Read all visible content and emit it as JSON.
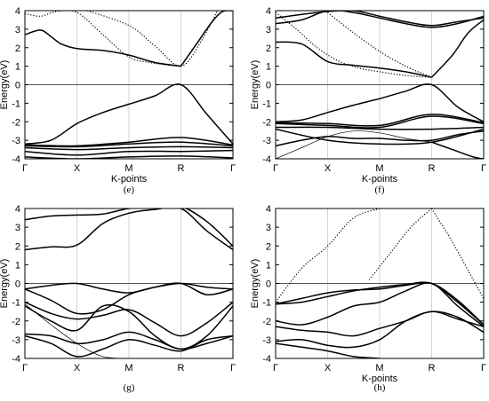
{
  "figure": {
    "panel_labels": [
      "(e)",
      "(f)",
      "(g)",
      "(h)"
    ]
  },
  "chart_data": [
    {
      "type": "line",
      "panel_label": "(e)",
      "xlabel": "K-points",
      "ylabel": "Energy(eV)",
      "x_ticks": [
        "Γ",
        "X",
        "M",
        "R",
        "Γ"
      ],
      "xlim": [
        0,
        4
      ],
      "ylim": [
        -4,
        4
      ],
      "y_ticks": [
        -4,
        -3,
        -2,
        -1,
        0,
        1,
        2,
        3,
        4
      ],
      "fermi_level": 0,
      "series": [
        {
          "x": [
            0,
            0.3,
            0.5,
            0.7,
            1,
            1.5,
            2,
            2.5,
            3
          ],
          "y": [
            2.7,
            2.95,
            2.6,
            2.2,
            1.95,
            1.85,
            1.6,
            1.2,
            1.0
          ],
          "style": "solid"
        },
        {
          "x": [
            3,
            3.3,
            3.6,
            3.8,
            4
          ],
          "y": [
            1.0,
            2.2,
            3.4,
            3.95,
            4.0
          ],
          "style": "solid"
        },
        {
          "x": [
            0,
            0.3,
            0.6,
            1,
            1.5,
            2,
            2.4,
            2.8,
            3
          ],
          "y": [
            3.85,
            3.7,
            3.95,
            3.9,
            2.7,
            1.5,
            1.2,
            1.05,
            1.0
          ],
          "style": "dotted"
        },
        {
          "x": [
            1.2,
            2,
            2.5,
            3,
            3.4,
            3.7
          ],
          "y": [
            4.0,
            3.2,
            2.1,
            1.0,
            2.4,
            4.0
          ],
          "style": "dotted"
        },
        {
          "x": [
            0,
            0.5,
            1,
            1.5,
            2,
            2.5,
            3,
            3.5,
            4
          ],
          "y": [
            -3.2,
            -3.0,
            -2.1,
            -1.5,
            -1.05,
            -0.6,
            0.0,
            -1.6,
            -3.2
          ],
          "style": "solid"
        },
        {
          "x": [
            0,
            1,
            2,
            3,
            4
          ],
          "y": [
            -3.25,
            -3.3,
            -3.1,
            -2.85,
            -3.25
          ],
          "style": "solid"
        },
        {
          "x": [
            0,
            1,
            2,
            3,
            4
          ],
          "y": [
            -3.3,
            -3.35,
            -3.2,
            -3.1,
            -3.3
          ],
          "style": "solid"
        },
        {
          "x": [
            0,
            1,
            2,
            3,
            4
          ],
          "y": [
            -3.4,
            -3.5,
            -3.4,
            -3.35,
            -3.4
          ],
          "style": "solid"
        },
        {
          "x": [
            0,
            1,
            2,
            3,
            4
          ],
          "y": [
            -3.6,
            -3.8,
            -3.6,
            -3.6,
            -3.55
          ],
          "style": "solid"
        },
        {
          "x": [
            0,
            1,
            2,
            3,
            4
          ],
          "y": [
            -3.9,
            -4.0,
            -3.9,
            -3.85,
            -3.95
          ],
          "style": "solid"
        }
      ]
    },
    {
      "type": "line",
      "panel_label": "(f)",
      "xlabel": "K-points",
      "ylabel": "Energy(eV)",
      "x_ticks": [
        "Γ",
        "X",
        "M",
        "R",
        "Γ"
      ],
      "xlim": [
        0,
        4
      ],
      "ylim": [
        -4,
        4
      ],
      "y_ticks": [
        -4,
        -3,
        -2,
        -1,
        0,
        1,
        2,
        3,
        4
      ],
      "fermi_level": 0,
      "series": [
        {
          "x": [
            0,
            0.5,
            1,
            1.5,
            2,
            2.5,
            3
          ],
          "y": [
            2.3,
            2.2,
            1.25,
            1.05,
            0.9,
            0.7,
            0.4
          ],
          "style": "solid"
        },
        {
          "x": [
            3,
            3.4,
            3.7,
            4
          ],
          "y": [
            0.4,
            1.6,
            2.8,
            3.5
          ],
          "style": "solid"
        },
        {
          "x": [
            0,
            0.5,
            1,
            1.5,
            2,
            2.5,
            3,
            3.5,
            4
          ],
          "y": [
            3.3,
            3.5,
            4.0,
            3.9,
            3.6,
            3.3,
            3.1,
            3.3,
            3.7
          ],
          "style": "solid"
        },
        {
          "x": [
            0,
            0.5,
            1,
            1.5,
            2,
            2.5,
            3,
            3.5,
            4
          ],
          "y": [
            3.6,
            3.8,
            3.95,
            4.0,
            3.7,
            3.4,
            3.2,
            3.4,
            3.6
          ],
          "style": "solid"
        },
        {
          "x": [
            0,
            0.4,
            0.8,
            1.2,
            1.6,
            2,
            2.5,
            3
          ],
          "y": [
            3.9,
            3.0,
            2.0,
            1.3,
            0.9,
            0.7,
            0.5,
            0.4
          ],
          "style": "dotted"
        },
        {
          "x": [
            1.0,
            1.5,
            2,
            2.5,
            3
          ],
          "y": [
            3.9,
            2.8,
            1.8,
            1.0,
            0.4
          ],
          "style": "dotted"
        },
        {
          "x": [
            0,
            0.5,
            1,
            1.5,
            2,
            2.5,
            3,
            3.5,
            4
          ],
          "y": [
            -2.0,
            -1.9,
            -1.5,
            -1.1,
            -0.75,
            -0.35,
            0.0,
            -1.2,
            -2.0
          ],
          "style": "solid"
        },
        {
          "x": [
            0,
            1,
            2,
            3,
            4
          ],
          "y": [
            -2.05,
            -2.1,
            -2.2,
            -1.6,
            -2.05
          ],
          "style": "solid"
        },
        {
          "x": [
            0,
            1,
            2,
            3,
            4
          ],
          "y": [
            -2.1,
            -2.2,
            -2.3,
            -1.7,
            -2.1
          ],
          "style": "solid"
        },
        {
          "x": [
            0,
            1,
            2,
            3,
            4
          ],
          "y": [
            -2.3,
            -2.3,
            -2.4,
            -2.4,
            -2.3
          ],
          "style": "solid"
        },
        {
          "x": [
            0,
            0.5,
            1,
            1.5,
            2,
            2.5,
            3,
            3.5,
            4
          ],
          "y": [
            -3.3,
            -3.0,
            -2.8,
            -2.9,
            -2.9,
            -3.0,
            -3.0,
            -2.7,
            -2.5
          ],
          "style": "solid"
        },
        {
          "x": [
            0,
            1,
            2,
            3,
            4
          ],
          "y": [
            -2.4,
            -3.0,
            -3.2,
            -3.1,
            -2.4
          ],
          "style": "solid"
        },
        {
          "x": [
            0,
            0.5,
            1,
            1.5,
            2,
            2.5,
            3
          ],
          "y": [
            -4.0,
            -3.4,
            -2.8,
            -2.5,
            -2.6,
            -2.9,
            -3.1
          ],
          "style": "thin"
        },
        {
          "x": [
            3,
            3.4,
            3.8,
            4
          ],
          "y": [
            -3.1,
            -3.5,
            -3.9,
            -4.0
          ],
          "style": "solid"
        }
      ]
    },
    {
      "type": "line",
      "panel_label": "(g)",
      "xlabel": "",
      "ylabel": "Energy(eV)",
      "x_ticks": [
        "Γ",
        "X",
        "M",
        "R",
        "Γ"
      ],
      "xlim": [
        0,
        4
      ],
      "ylim": [
        -4,
        4
      ],
      "y_ticks": [
        -4,
        -3,
        -2,
        -1,
        0,
        1,
        2,
        3,
        4
      ],
      "fermi_level": 0,
      "series": [
        {
          "x": [
            0,
            0.5,
            1,
            1.5,
            2,
            2.5,
            3,
            3.5,
            4
          ],
          "y": [
            1.8,
            1.95,
            2.05,
            3.2,
            3.75,
            3.95,
            4.0,
            2.8,
            1.8
          ],
          "style": "solid"
        },
        {
          "x": [
            0,
            0.5,
            1,
            1.5,
            2,
            2.5,
            3,
            3.5,
            4
          ],
          "y": [
            3.4,
            3.6,
            3.65,
            3.7,
            4.0,
            4.05,
            4.1,
            3.3,
            2.0
          ],
          "style": "solid"
        },
        {
          "x": [
            0,
            0.5,
            1,
            1.5,
            2,
            2.5,
            3,
            3.5,
            4
          ],
          "y": [
            -0.3,
            -0.1,
            0.0,
            -0.3,
            -0.5,
            -0.2,
            0.0,
            -0.2,
            -0.3
          ],
          "style": "solid"
        },
        {
          "x": [
            0,
            0.5,
            1,
            1.5,
            2,
            2.5,
            3,
            3.5,
            4
          ],
          "y": [
            -0.3,
            -0.9,
            -1.6,
            -1.4,
            -0.6,
            -0.2,
            0.0,
            -0.6,
            -0.3
          ],
          "style": "solid"
        },
        {
          "x": [
            0,
            0.5,
            1,
            1.5,
            2,
            2.5,
            3,
            3.5,
            4
          ],
          "y": [
            -1.0,
            -1.6,
            -1.9,
            -1.7,
            -1.4,
            -2.1,
            -2.8,
            -2.1,
            -1.0
          ],
          "style": "solid"
        },
        {
          "x": [
            0,
            0.5,
            1,
            1.5,
            2,
            2.5,
            3,
            3.5,
            4
          ],
          "y": [
            -1.2,
            -2.0,
            -2.5,
            -1.2,
            -1.5,
            -2.8,
            -3.5,
            -2.8,
            -1.2
          ],
          "style": "solid"
        },
        {
          "x": [
            0,
            0.5,
            1,
            1.5,
            2,
            2.5,
            3,
            3.5,
            4
          ],
          "y": [
            -2.7,
            -2.8,
            -3.2,
            -3.0,
            -2.6,
            -3.0,
            -3.5,
            -3.2,
            -2.8
          ],
          "style": "solid"
        },
        {
          "x": [
            0,
            0.5,
            1,
            1.5,
            2,
            2.5,
            3,
            3.5,
            4
          ],
          "y": [
            -2.8,
            -3.2,
            -3.9,
            -3.5,
            -3.0,
            -3.3,
            -3.6,
            -3.0,
            -2.8
          ],
          "style": "solid"
        },
        {
          "x": [
            0,
            0.5,
            1,
            1.5,
            2
          ],
          "y": [
            -1.1,
            -2.2,
            -3.2,
            -3.9,
            -4.0
          ],
          "style": "thin"
        }
      ]
    },
    {
      "type": "line",
      "panel_label": "(h)",
      "xlabel": "K-points",
      "ylabel": "Energy(eV)",
      "x_ticks": [
        "Γ",
        "X",
        "M",
        "R",
        "Γ"
      ],
      "xlim": [
        0,
        4
      ],
      "ylim": [
        -4,
        4
      ],
      "y_ticks": [
        -4,
        -3,
        -2,
        -1,
        0,
        1,
        2,
        3,
        4
      ],
      "fermi_level": 0,
      "series": [
        {
          "x": [
            0,
            0.5,
            1,
            1.5,
            2
          ],
          "y": [
            -1.0,
            0.8,
            2.0,
            3.5,
            4.0
          ],
          "style": "dotted"
        },
        {
          "x": [
            1.8,
            2.2,
            2.6,
            3.0
          ],
          "y": [
            0.2,
            1.6,
            3.0,
            4.0
          ],
          "style": "dotted"
        },
        {
          "x": [
            3.0,
            3.4,
            3.8,
            4.0
          ],
          "y": [
            4.0,
            2.2,
            0.2,
            -0.8
          ],
          "style": "dotted"
        },
        {
          "x": [
            0,
            0.5,
            1,
            1.5,
            2,
            2.5,
            3,
            3.5,
            4
          ],
          "y": [
            -1.1,
            -1.0,
            -0.7,
            -0.4,
            -0.2,
            -0.05,
            0.0,
            -1.0,
            -2.2
          ],
          "style": "solid"
        },
        {
          "x": [
            0,
            0.5,
            1,
            1.5,
            2,
            2.5,
            3,
            3.5,
            4
          ],
          "y": [
            -1.1,
            -0.8,
            -0.5,
            -0.35,
            -0.3,
            -0.1,
            0.0,
            -0.9,
            -2.2
          ],
          "style": "solid"
        },
        {
          "x": [
            0,
            0.5,
            1,
            1.5,
            2,
            2.5,
            3,
            3.5,
            4
          ],
          "y": [
            -2.0,
            -2.2,
            -1.8,
            -1.2,
            -1.0,
            -0.4,
            0.0,
            -1.2,
            -2.3
          ],
          "style": "solid"
        },
        {
          "x": [
            0,
            0.5,
            1,
            1.5,
            2,
            2.5,
            3,
            3.5,
            4
          ],
          "y": [
            -2.3,
            -2.5,
            -2.6,
            -2.8,
            -2.4,
            -2.0,
            -1.5,
            -1.9,
            -2.3
          ],
          "style": "solid"
        },
        {
          "x": [
            0,
            0.5,
            1,
            1.5,
            2,
            2.5,
            3,
            3.5,
            4
          ],
          "y": [
            -3.1,
            -3.0,
            -3.3,
            -3.4,
            -3.0,
            -2.0,
            -1.5,
            -1.8,
            -2.6
          ],
          "style": "solid"
        },
        {
          "x": [
            0,
            0.5,
            1,
            1.5,
            2
          ],
          "y": [
            -3.2,
            -3.4,
            -3.6,
            -3.9,
            -4.0
          ],
          "style": "solid"
        }
      ]
    }
  ]
}
